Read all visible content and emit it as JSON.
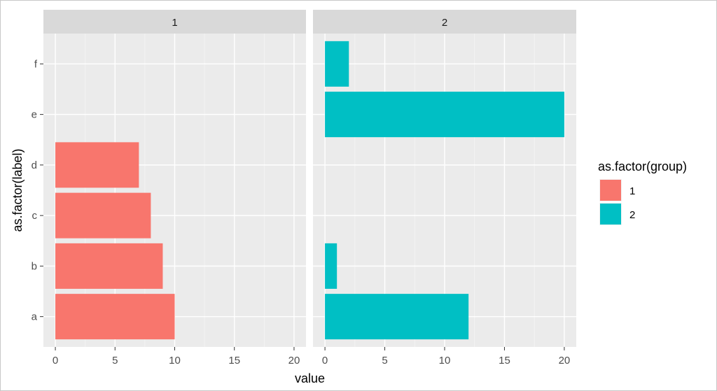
{
  "chart_data": {
    "type": "bar",
    "orientation": "horizontal",
    "facet_by": "group",
    "facets": [
      {
        "strip_label": "1",
        "bars": [
          {
            "label": "a",
            "value": 10,
            "group": "1"
          },
          {
            "label": "b",
            "value": 9,
            "group": "1"
          },
          {
            "label": "c",
            "value": 8,
            "group": "1"
          },
          {
            "label": "d",
            "value": 7,
            "group": "1"
          }
        ]
      },
      {
        "strip_label": "2",
        "bars": [
          {
            "label": "a",
            "value": 12,
            "group": "2"
          },
          {
            "label": "b",
            "value": 1,
            "group": "2"
          },
          {
            "label": "e",
            "value": 20,
            "group": "2"
          },
          {
            "label": "f",
            "value": 2,
            "group": "2"
          }
        ]
      }
    ],
    "categories": [
      "a",
      "b",
      "c",
      "d",
      "e",
      "f"
    ],
    "xlabel": "value",
    "ylabel": "as.factor(label)",
    "xlim": [
      -1,
      21
    ],
    "xticks": [
      0,
      5,
      10,
      15,
      20
    ],
    "grid": true,
    "legend": {
      "title": "as.factor(group)",
      "position": "right",
      "entries": [
        {
          "label": "1",
          "color": "#F8766D"
        },
        {
          "label": "2",
          "color": "#00BFC4"
        }
      ]
    },
    "colors": {
      "1": "#F8766D",
      "2": "#00BFC4"
    }
  }
}
